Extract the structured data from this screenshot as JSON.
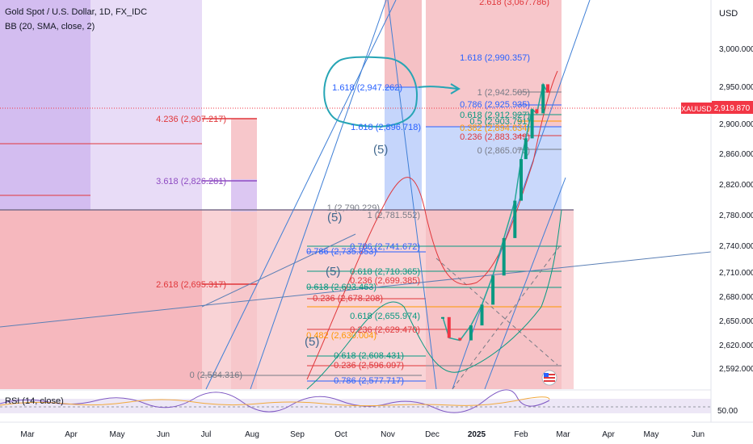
{
  "header": {
    "title": "Gold Spot / U.S. Dollar, 1D, FX_IDC",
    "indicator": "BB (20, SMA, close, 2)"
  },
  "rsi": {
    "label": "RSI (14, close)",
    "level_label": "50.00"
  },
  "price_axis": {
    "currency": "USD",
    "ticks": [
      "3,000.000",
      "2,950.000",
      "2,900.000",
      "2,860.000",
      "2,820.000",
      "2,780.000",
      "2,740.000",
      "2,710.000",
      "2,680.000",
      "2,650.000",
      "2,620.000",
      "2,592.000"
    ],
    "current_symbol": "XAUUSD",
    "current_price": "2,919.870"
  },
  "time_axis": {
    "labels": [
      "Mar",
      "Apr",
      "May",
      "Jun",
      "Jul",
      "Aug",
      "Sep",
      "Oct",
      "Nov",
      "Dec",
      "2025",
      "Feb",
      "Mar",
      "Apr",
      "May",
      "Jun"
    ]
  },
  "fib_labels": [
    {
      "id": "f1",
      "text": "2.618 (3,067.786)"
    },
    {
      "id": "f2",
      "text": "1.618 (2,990.357)"
    },
    {
      "id": "f3",
      "text": "1.618 (2,947.262)"
    },
    {
      "id": "f4",
      "text": "1 (2,942.505)"
    },
    {
      "id": "f5",
      "text": "0.786 (2,925.935)"
    },
    {
      "id": "f6",
      "text": "0.618 (2,912.927)"
    },
    {
      "id": "f7",
      "text": "0.5 (2,903.791)"
    },
    {
      "id": "f8",
      "text": "0.382 (2,894.634)"
    },
    {
      "id": "f9",
      "text": "1.618 (2,896.718)"
    },
    {
      "id": "f10",
      "text": "0.236 (2,883.349)"
    },
    {
      "id": "f11",
      "text": "0 (2,865.076)"
    },
    {
      "id": "f12",
      "text": "4.236 (2,907.217)"
    },
    {
      "id": "f13",
      "text": "3.618 (2,826.281)"
    },
    {
      "id": "f14",
      "text": "1 (2,790.229)"
    },
    {
      "id": "f15",
      "text": "1 (2,781.552)"
    },
    {
      "id": "f16",
      "text": "0.786 (2,741.672)"
    },
    {
      "id": "f17",
      "text": "0.786 (2,735.853)"
    },
    {
      "id": "f18",
      "text": "0.618 (2,710.365)"
    },
    {
      "id": "f19",
      "text": "0.236 (2,699.385)"
    },
    {
      "id": "f20",
      "text": "2.618 (2,695.317)"
    },
    {
      "id": "f21",
      "text": "0.618 (2,693.463)"
    },
    {
      "id": "f22",
      "text": "0.236 (2,678.208)"
    },
    {
      "id": "f23",
      "text": "0.618 (2,655.974)"
    },
    {
      "id": "f24",
      "text": "0.482 (2,630.004)"
    },
    {
      "id": "f25",
      "text": "0.236 (2,629.470)"
    },
    {
      "id": "f26",
      "text": "0.618 (2,608.431)"
    },
    {
      "id": "f27",
      "text": "0.236 (2,596.097)"
    },
    {
      "id": "f28",
      "text": "0 (2,584.316)"
    },
    {
      "id": "f29",
      "text": "0.786 (2,577.717)"
    }
  ],
  "wave_labels": [
    {
      "id": "w1",
      "text": "(5)"
    },
    {
      "id": "w2",
      "text": "(5)"
    },
    {
      "id": "w3",
      "text": "(5)"
    },
    {
      "id": "w4",
      "text": "(5)"
    }
  ],
  "colors": {
    "red_zone": "#f7c7cb",
    "blue_zone": "#c5d5fb",
    "purple_zone": "#d3bdf0",
    "fib_red": "#e0373b",
    "fib_blue": "#2962ff",
    "fib_green": "#089981",
    "fib_orange": "#ff9800",
    "trend_blue": "#3f7fd6",
    "annotation": "#26a5b5",
    "rsi": "#7e57c2"
  },
  "chart_data": {
    "type": "line",
    "title": "Gold Spot / U.S. Dollar, 1D, FX_IDC",
    "xlabel": "",
    "ylabel": "USD",
    "ylim": [
      2575,
      3075
    ],
    "x": [
      "2024-12-16",
      "2024-12-20",
      "2024-12-27",
      "2025-01-03",
      "2025-01-10",
      "2025-01-17",
      "2025-01-24",
      "2025-01-31",
      "2025-02-04",
      "2025-02-07",
      "2025-02-11",
      "2025-02-14",
      "2025-02-18",
      "2025-02-21"
    ],
    "series": [
      {
        "name": "XAUUSD",
        "values": [
          2650,
          2625,
          2622,
          2640,
          2665,
          2700,
          2745,
          2790,
          2840,
          2865,
          2900,
          2895,
          2930,
          2920
        ]
      }
    ],
    "current_price": 2919.87,
    "grid": false,
    "legend": "none"
  }
}
